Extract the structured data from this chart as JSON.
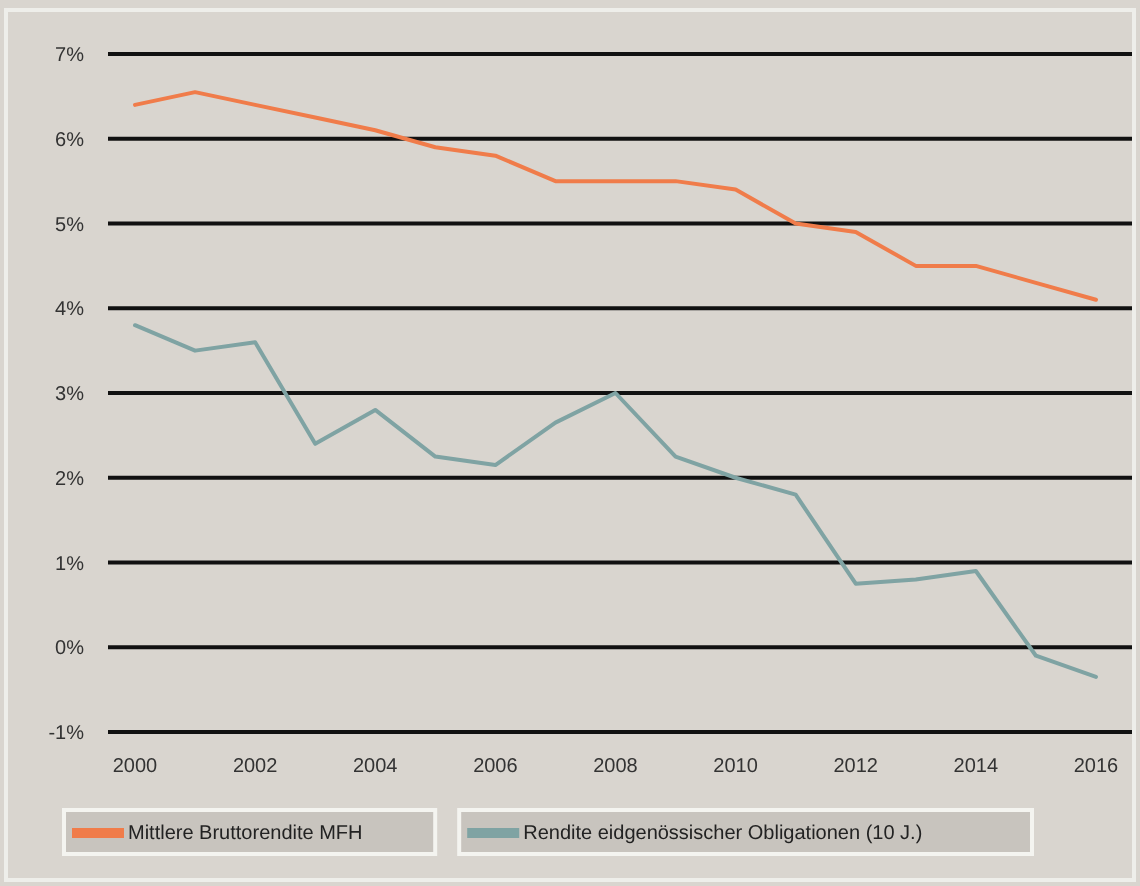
{
  "chart_data": {
    "type": "line",
    "x": [
      2000,
      2001,
      2002,
      2003,
      2004,
      2005,
      2006,
      2007,
      2008,
      2009,
      2010,
      2011,
      2012,
      2013,
      2014,
      2015,
      2016
    ],
    "series": [
      {
        "name": "Mittlere Bruttorendite MFH",
        "color": "#f07c4a",
        "values": [
          6.4,
          6.55,
          6.4,
          6.25,
          6.1,
          5.9,
          5.8,
          5.5,
          5.5,
          5.5,
          5.4,
          5.0,
          4.9,
          4.5,
          4.5,
          4.3,
          4.1
        ]
      },
      {
        "name": "Rendite eidgenössischer Obligationen (10 J.)",
        "color": "#7fa3a3",
        "values": [
          3.8,
          3.5,
          3.6,
          2.4,
          2.8,
          2.25,
          2.15,
          2.65,
          3.0,
          2.25,
          2.0,
          1.8,
          0.75,
          0.8,
          0.9,
          -0.1,
          -0.35
        ]
      }
    ],
    "xlim": [
      1999.55,
      2016.6
    ],
    "xticks": [
      2000,
      2002,
      2004,
      2006,
      2008,
      2010,
      2012,
      2014,
      2016
    ],
    "ylim": [
      -1,
      7
    ],
    "yticks": [
      {
        "value": -1,
        "label": "-1%"
      },
      {
        "value": 0,
        "label": "0%"
      },
      {
        "value": 1,
        "label": "1%"
      },
      {
        "value": 2,
        "label": "2%"
      },
      {
        "value": 3,
        "label": "3%"
      },
      {
        "value": 4,
        "label": "4%"
      },
      {
        "value": 5,
        "label": "5%"
      },
      {
        "value": 6,
        "label": "6%"
      },
      {
        "value": 7,
        "label": "7%"
      }
    ],
    "grid": "y",
    "legend": "bottom",
    "marker": "none",
    "line_style": "solid"
  }
}
